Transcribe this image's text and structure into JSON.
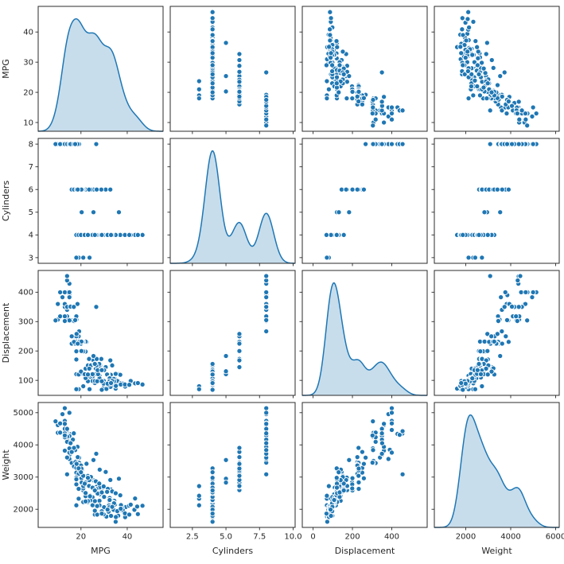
{
  "figure": {
    "background": "#ffffff",
    "kind": "seaborn-pairplot"
  },
  "chart_data": {
    "type": "scatter",
    "subtype": "scatter-matrix-pairplot",
    "diagonal": "kde",
    "grid": false,
    "legend": "none",
    "variables": [
      "MPG",
      "Cylinders",
      "Displacement",
      "Weight"
    ],
    "colors": {
      "marker": "#1f77b4",
      "marker_edge": "#ffffff",
      "kde_line": "#1f77b4",
      "kde_fill": "#c7ddec",
      "spine": "#2b2b2b",
      "tick": "#2b2b2b",
      "text": "#262626"
    },
    "x_limits": [
      [
        1.5,
        55.5
      ],
      [
        0.85,
        10.15
      ],
      [
        -55,
        580
      ],
      [
        600,
        6160
      ]
    ],
    "y_limits": [
      [
        7.1,
        48.5
      ],
      [
        2.75,
        8.25
      ],
      [
        49,
        474
      ],
      [
        1437,
        5316
      ]
    ],
    "x_ticks": [
      [
        20,
        40
      ],
      [
        2.5,
        5.0,
        7.5,
        10.0
      ],
      [
        0,
        200,
        400
      ],
      [
        2000,
        4000,
        6000
      ]
    ],
    "x_tick_labels": [
      [
        "20",
        "40"
      ],
      [
        "2.5",
        "5.0",
        "7.5",
        "10.0"
      ],
      [
        "0",
        "200",
        "400"
      ],
      [
        "2000",
        "4000",
        "6000"
      ]
    ],
    "y_ticks": [
      [
        10,
        20,
        30,
        40
      ],
      [
        3,
        4,
        5,
        6,
        7,
        8
      ],
      [
        100,
        200,
        300,
        400
      ],
      [
        2000,
        3000,
        4000,
        5000
      ]
    ],
    "y_tick_labels": [
      [
        "10",
        "20",
        "30",
        "40"
      ],
      [
        "3",
        "4",
        "5",
        "6",
        "7",
        "8"
      ],
      [
        "100",
        "200",
        "300",
        "400"
      ],
      [
        "2000",
        "3000",
        "4000",
        "5000"
      ]
    ],
    "kde_bandwidths": [
      2.5,
      0.55,
      31,
      255
    ],
    "points": [
      [
        18,
        8,
        307,
        3504
      ],
      [
        15,
        8,
        350,
        3693
      ],
      [
        18,
        8,
        318,
        3436
      ],
      [
        16,
        8,
        304,
        3433
      ],
      [
        17,
        8,
        302,
        3449
      ],
      [
        15,
        8,
        429,
        4341
      ],
      [
        14,
        8,
        454,
        4354
      ],
      [
        14,
        8,
        440,
        4312
      ],
      [
        14,
        8,
        455,
        4425
      ],
      [
        15,
        8,
        390,
        3850
      ],
      [
        15,
        8,
        383,
        3563
      ],
      [
        14,
        8,
        340,
        3609
      ],
      [
        15,
        8,
        400,
        3761
      ],
      [
        14,
        8,
        455,
        3086
      ],
      [
        10,
        8,
        360,
        4615
      ],
      [
        10,
        8,
        307,
        4376
      ],
      [
        11,
        8,
        318,
        4382
      ],
      [
        9,
        8,
        304,
        4732
      ],
      [
        14,
        8,
        350,
        4209
      ],
      [
        14,
        8,
        400,
        4464
      ],
      [
        14,
        8,
        351,
        4154
      ],
      [
        14,
        8,
        318,
        4096
      ],
      [
        12,
        8,
        383,
        4955
      ],
      [
        13,
        8,
        400,
        4746
      ],
      [
        13,
        8,
        400,
        5140
      ],
      [
        13,
        8,
        360,
        3821
      ],
      [
        15,
        8,
        350,
        4274
      ],
      [
        14,
        8,
        304,
        4257
      ],
      [
        11,
        8,
        400,
        4668
      ],
      [
        13,
        8,
        351,
        4363
      ],
      [
        13,
        8,
        318,
        4237
      ],
      [
        15,
        8,
        304,
        3892
      ],
      [
        13,
        8,
        350,
        4502
      ],
      [
        13,
        8,
        302,
        4294
      ],
      [
        13,
        8,
        360,
        4654
      ],
      [
        14,
        8,
        350,
        4499
      ],
      [
        15,
        8,
        400,
        4997
      ],
      [
        16,
        8,
        351,
        4129
      ],
      [
        16.5,
        8,
        350,
        4165
      ],
      [
        19.2,
        8,
        267,
        3605
      ],
      [
        18.5,
        8,
        360,
        3940
      ],
      [
        15.5,
        8,
        351,
        4054
      ],
      [
        16.9,
        8,
        350,
        4360
      ],
      [
        26.6,
        8,
        350,
        3725
      ],
      [
        17.5,
        8,
        305,
        3840
      ],
      [
        22,
        6,
        198,
        2833
      ],
      [
        18,
        6,
        199,
        2774
      ],
      [
        21,
        6,
        200,
        2587
      ],
      [
        21,
        6,
        199,
        2648
      ],
      [
        19,
        6,
        232,
        2634
      ],
      [
        16,
        6,
        225,
        3439
      ],
      [
        17,
        6,
        250,
        3329
      ],
      [
        19,
        6,
        250,
        3302
      ],
      [
        18,
        6,
        232,
        3288
      ],
      [
        18,
        6,
        258,
        2962
      ],
      [
        19,
        6,
        250,
        3282
      ],
      [
        18,
        6,
        250,
        3139
      ],
      [
        19,
        6,
        225,
        3102
      ],
      [
        18,
        6,
        171,
        2984
      ],
      [
        22.4,
        6,
        231,
        3415
      ],
      [
        20.2,
        6,
        200,
        2965
      ],
      [
        17.6,
        6,
        225,
        3465
      ],
      [
        19.2,
        6,
        231,
        3445
      ],
      [
        25.4,
        6,
        168,
        2900
      ],
      [
        24.2,
        6,
        146,
        2930
      ],
      [
        30.7,
        6,
        145,
        3160
      ],
      [
        22,
        6,
        232,
        2835
      ],
      [
        19.1,
        6,
        225,
        3381
      ],
      [
        28.8,
        6,
        173,
        2595
      ],
      [
        26.8,
        6,
        173,
        2700
      ],
      [
        23.5,
        6,
        173,
        2725
      ],
      [
        32.7,
        6,
        168,
        2910
      ],
      [
        16,
        6,
        250,
        3781
      ],
      [
        20,
        6,
        225,
        3360
      ],
      [
        21,
        6,
        231,
        3039
      ],
      [
        20.5,
        6,
        231,
        3245
      ],
      [
        19.4,
        6,
        232,
        3210
      ],
      [
        20.2,
        6,
        232,
        3265
      ],
      [
        17,
        6,
        231,
        3907
      ],
      [
        18.1,
        6,
        258,
        3410
      ],
      [
        18.6,
        6,
        225,
        3620
      ],
      [
        25.4,
        5,
        183,
        3530
      ],
      [
        36.4,
        5,
        121,
        2950
      ],
      [
        20.3,
        5,
        131,
        2830
      ],
      [
        19,
        3,
        70,
        2330
      ],
      [
        18,
        3,
        70,
        2124
      ],
      [
        21,
        3,
        80,
        2720
      ],
      [
        23.7,
        3,
        70,
        2420
      ],
      [
        24,
        4,
        113,
        2372
      ],
      [
        27,
        4,
        97,
        2130
      ],
      [
        26,
        4,
        97,
        1835
      ],
      [
        25,
        4,
        110,
        2672
      ],
      [
        24,
        4,
        107,
        2430
      ],
      [
        25,
        4,
        104,
        2375
      ],
      [
        26,
        4,
        121,
        2234
      ],
      [
        28,
        4,
        140,
        2264
      ],
      [
        25,
        4,
        113,
        2228
      ],
      [
        22,
        4,
        140,
        2408
      ],
      [
        23,
        4,
        122,
        2220
      ],
      [
        28,
        4,
        116,
        2123
      ],
      [
        30,
        4,
        79,
        2074
      ],
      [
        30,
        4,
        88,
        2065
      ],
      [
        31,
        4,
        71,
        1773
      ],
      [
        35,
        4,
        72,
        1613
      ],
      [
        27,
        4,
        97,
        1834
      ],
      [
        26,
        4,
        91,
        1955
      ],
      [
        24,
        4,
        113,
        2278
      ],
      [
        25,
        4,
        98,
        2126
      ],
      [
        23,
        4,
        97,
        2254
      ],
      [
        22,
        4,
        120,
        2506
      ],
      [
        21,
        4,
        122,
        2226
      ],
      [
        26,
        4,
        98,
        2255
      ],
      [
        22,
        4,
        108,
        2245
      ],
      [
        28,
        4,
        107,
        2464
      ],
      [
        27,
        4,
        97,
        2100
      ],
      [
        43.1,
        4,
        90,
        1985
      ],
      [
        36.1,
        4,
        98,
        1800
      ],
      [
        32.8,
        4,
        78,
        1985
      ],
      [
        39.4,
        4,
        85,
        2070
      ],
      [
        36.1,
        4,
        91,
        1800
      ],
      [
        46.6,
        4,
        86,
        2110
      ],
      [
        40.8,
        4,
        85,
        2110
      ],
      [
        44.3,
        4,
        90,
        2085
      ],
      [
        43.4,
        4,
        90,
        2335
      ],
      [
        44.6,
        4,
        91,
        1850
      ],
      [
        33.8,
        4,
        97,
        2145
      ],
      [
        37,
        4,
        85,
        1975
      ],
      [
        37.7,
        4,
        89,
        2050
      ],
      [
        34.1,
        4,
        86,
        1975
      ],
      [
        34.7,
        4,
        105,
        2150
      ],
      [
        34.4,
        4,
        98,
        2265
      ],
      [
        29.9,
        4,
        98,
        2380
      ],
      [
        33,
        4,
        105,
        2190
      ],
      [
        33.7,
        4,
        107,
        2210
      ],
      [
        32.4,
        4,
        108,
        2350
      ],
      [
        32.9,
        4,
        119,
        2615
      ],
      [
        31.6,
        4,
        120,
        2635
      ],
      [
        28.1,
        4,
        141,
        3230
      ],
      [
        31.9,
        4,
        89,
        1925
      ],
      [
        34.1,
        4,
        91,
        1985
      ],
      [
        35.7,
        4,
        98,
        1945
      ],
      [
        27.4,
        4,
        121,
        2490
      ],
      [
        23,
        4,
        151,
        3035
      ],
      [
        23.9,
        4,
        119,
        2405
      ],
      [
        34.2,
        4,
        105,
        2200
      ],
      [
        31.8,
        4,
        85,
        2020
      ],
      [
        37.3,
        4,
        91,
        2130
      ],
      [
        28.4,
        4,
        151,
        2670
      ],
      [
        33.5,
        4,
        151,
        2556
      ],
      [
        41.5,
        4,
        98,
        2144
      ],
      [
        38.1,
        4,
        89,
        1968
      ],
      [
        32.1,
        4,
        98,
        2120
      ],
      [
        37.2,
        4,
        86,
        2019
      ],
      [
        28,
        4,
        151,
        2678
      ],
      [
        26.4,
        4,
        140,
        2870
      ],
      [
        24.3,
        4,
        151,
        3003
      ],
      [
        34.3,
        4,
        97,
        2188
      ],
      [
        29.8,
        4,
        134,
        2711
      ],
      [
        31.3,
        4,
        120,
        2542
      ],
      [
        37,
        4,
        119,
        2434
      ],
      [
        32.2,
        4,
        108,
        2265
      ],
      [
        27.9,
        4,
        156,
        2800
      ],
      [
        23.6,
        4,
        140,
        2905
      ],
      [
        32.4,
        4,
        107,
        2290
      ],
      [
        27.2,
        4,
        135,
        2490
      ],
      [
        26.6,
        4,
        151,
        2635
      ],
      [
        25.8,
        4,
        156,
        2620
      ],
      [
        30,
        4,
        135,
        2385
      ],
      [
        39.1,
        4,
        79,
        1755
      ],
      [
        39,
        4,
        86,
        1875
      ],
      [
        35.1,
        4,
        81,
        1760
      ],
      [
        32.3,
        4,
        97,
        2065
      ],
      [
        29.8,
        4,
        89,
        1845
      ],
      [
        35,
        4,
        122,
        2500
      ],
      [
        40.9,
        4,
        85,
        1835
      ],
      [
        33.5,
        4,
        98,
        2075
      ],
      [
        29,
        4,
        135,
        2525
      ],
      [
        29,
        4,
        97,
        1940
      ],
      [
        18,
        4,
        121,
        2933
      ],
      [
        19,
        4,
        120,
        3270
      ],
      [
        20,
        4,
        130,
        3150
      ],
      [
        21.6,
        4,
        121,
        2795
      ],
      [
        25,
        4,
        121,
        2671
      ],
      [
        23,
        4,
        120,
        2979
      ],
      [
        31.5,
        4,
        89,
        1990
      ],
      [
        33,
        4,
        91,
        1795
      ],
      [
        29,
        4,
        68,
        1867
      ],
      [
        26,
        4,
        156,
        2585
      ]
    ]
  }
}
